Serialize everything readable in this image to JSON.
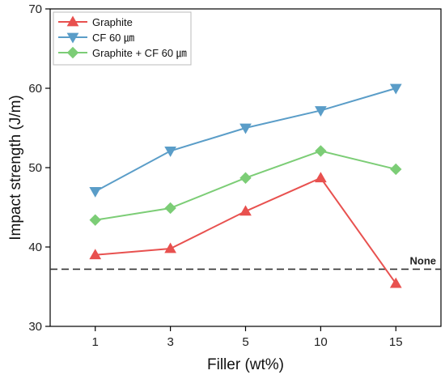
{
  "chart_data": {
    "type": "line",
    "title": "",
    "xlabel": "Filler (wt%)",
    "ylabel": "Impact strength (J/m)",
    "categories": [
      "1",
      "3",
      "5",
      "10",
      "15"
    ],
    "ylim": [
      30,
      70
    ],
    "yticks": [
      30,
      40,
      50,
      60,
      70
    ],
    "grid": false,
    "legend_position": "top-left",
    "series": [
      {
        "name": "Graphite",
        "marker": "triangle-up",
        "color": "#e8514f",
        "values": [
          39.0,
          39.8,
          44.5,
          48.7,
          35.4
        ]
      },
      {
        "name": "CF 60 ㎛",
        "marker": "triangle-down",
        "color": "#5a9dc8",
        "values": [
          47.0,
          52.1,
          55.0,
          57.2,
          60.0
        ]
      },
      {
        "name": "Graphite + CF 60 ㎛",
        "marker": "diamond",
        "color": "#7ccd76",
        "values": [
          43.4,
          44.9,
          48.7,
          52.1,
          49.8
        ]
      }
    ],
    "reference_line": {
      "label": "None",
      "value": 37.2,
      "style": "dashed",
      "color": "#333333"
    }
  }
}
